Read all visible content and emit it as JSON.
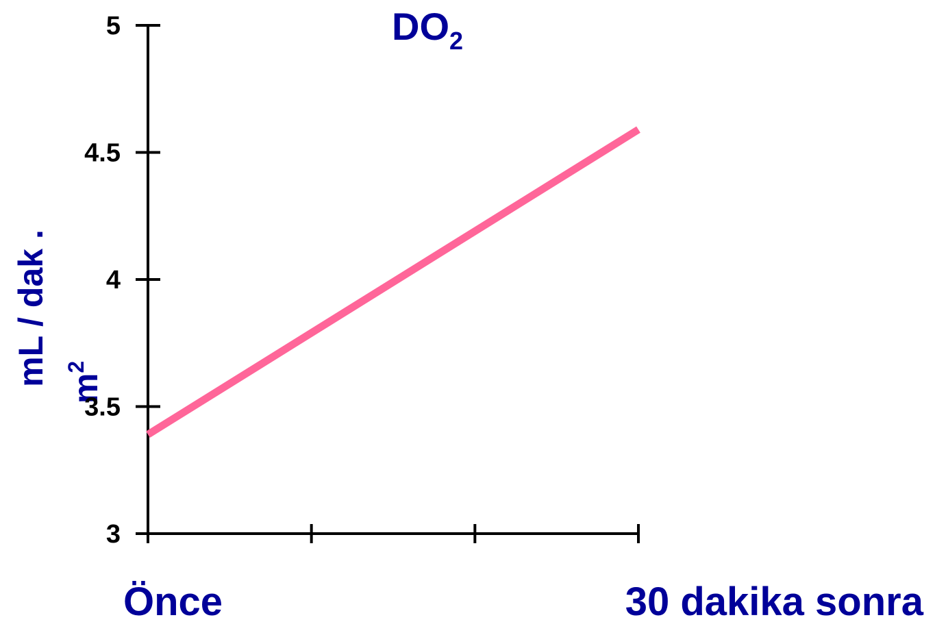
{
  "colors": {
    "title": "#000099",
    "axis": "#000000",
    "series": "#ff6699",
    "labels": "#000099"
  },
  "chart_data": {
    "type": "line",
    "title": "DO",
    "title_subscript": "2",
    "ylabel_line1": "mL / dak .",
    "ylabel_line2": "m",
    "ylabel_line2_sup": "2",
    "categories": [
      "Önce",
      "30 dakika sonra"
    ],
    "x_ticks": 4,
    "y_ticks": [
      "3",
      "3.5",
      "4",
      "4.5",
      "5"
    ],
    "ylim": [
      3,
      5
    ],
    "series": [
      {
        "values": [
          3.39,
          4.59
        ]
      }
    ],
    "grid": false,
    "legend": "none"
  }
}
